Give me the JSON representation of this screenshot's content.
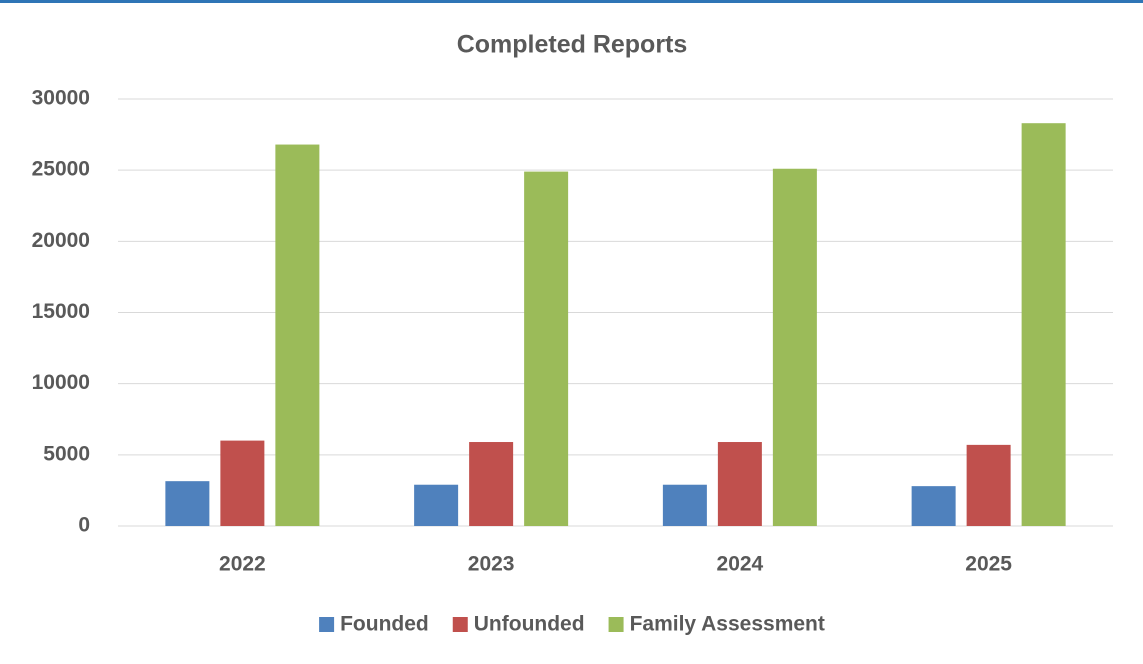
{
  "chart_data": {
    "type": "bar",
    "title": "Completed Reports",
    "categories": [
      "2022",
      "2023",
      "2024",
      "2025"
    ],
    "series": [
      {
        "name": "Founded",
        "color": "#4f81bd",
        "values": [
          3150,
          2900,
          2900,
          2800
        ]
      },
      {
        "name": "Unfounded",
        "color": "#c0504d",
        "values": [
          6000,
          5900,
          5900,
          5700
        ]
      },
      {
        "name": "Family Assessment",
        "color": "#9bbb59",
        "values": [
          26800,
          24900,
          25100,
          28300
        ]
      }
    ],
    "ylim": [
      0,
      30000
    ],
    "yticks": [
      0,
      5000,
      10000,
      15000,
      20000,
      25000,
      30000
    ],
    "grid": true,
    "legend": "bottom"
  }
}
